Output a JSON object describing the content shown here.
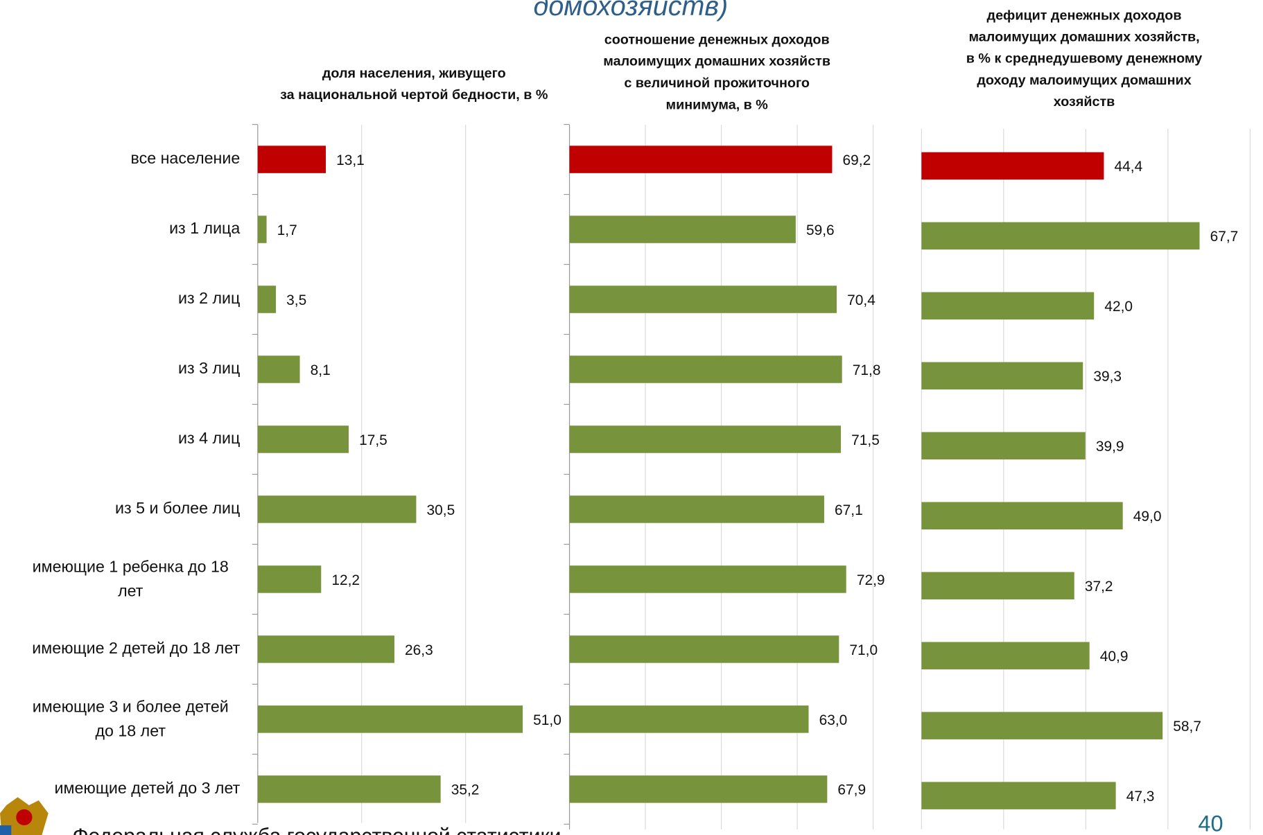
{
  "header_fragment": "домохозяйств)",
  "footer": "Федеральная служба государственной статистики",
  "page_number": "40",
  "chart_data": [
    {
      "type": "hbar",
      "title": [
        "доля населения, живущего",
        "за национальной чертой бедности, в %"
      ],
      "categories": [
        "все население",
        "из 1 лица",
        "из 2 лиц",
        "из 3 лиц",
        "из 4 лиц",
        "из 5 и более лиц",
        "имеющие 1 ребенка до 18\nлет",
        "имеющие 2 детей до 18 лет",
        "имеющие 3 и более детей\nдо 18 лет",
        "имеющие детей до 3 лет"
      ],
      "values": [
        13.1,
        1.7,
        3.5,
        8.1,
        17.5,
        30.5,
        12.2,
        26.3,
        51.0,
        35.2
      ],
      "value_labels": [
        "13,1",
        "1,7",
        "3,5",
        "8,1",
        "17,5",
        "30,5",
        "12,2",
        "26,3",
        "51,0",
        "35,2"
      ],
      "colors": [
        "#c00000",
        "#77933c",
        "#77933c",
        "#77933c",
        "#77933c",
        "#77933c",
        "#77933c",
        "#77933c",
        "#77933c",
        "#77933c"
      ],
      "xlim": [
        0,
        60
      ],
      "xticks": [
        0,
        20,
        40,
        60
      ],
      "grid": true
    },
    {
      "type": "hbar",
      "title": [
        "соотношение денежных доходов",
        "малоимущих домашних хозяйств",
        "с величиной прожиточного",
        "минимума, в %"
      ],
      "values": [
        69.2,
        59.6,
        70.4,
        71.8,
        71.5,
        67.1,
        72.9,
        71.0,
        63.0,
        67.9
      ],
      "value_labels": [
        "69,2",
        "59,6",
        "70,4",
        "71,8",
        "71,5",
        "67,1",
        "72,9",
        "71,0",
        "63,0",
        "67,9"
      ],
      "colors": [
        "#c00000",
        "#77933c",
        "#77933c",
        "#77933c",
        "#77933c",
        "#77933c",
        "#77933c",
        "#77933c",
        "#77933c",
        "#77933c"
      ],
      "xlim": [
        0,
        80
      ],
      "xticks": [
        0,
        20,
        40,
        60,
        80
      ],
      "grid": true
    },
    {
      "type": "hbar",
      "title": [
        "дефицит денежных доходов",
        "малоимущих домашних хозяйств,",
        "в % к среднедушевому денежному",
        "доходу малоимущих домашних",
        "хозяйств"
      ],
      "values": [
        44.4,
        67.7,
        42.0,
        39.3,
        39.9,
        49.0,
        37.2,
        40.9,
        58.7,
        47.3
      ],
      "value_labels": [
        "44,4",
        "67,7",
        "42,0",
        "39,3",
        "39,9",
        "49,0",
        "37,2",
        "40,9",
        "58,7",
        "47,3"
      ],
      "colors": [
        "#c00000",
        "#77933c",
        "#77933c",
        "#77933c",
        "#77933c",
        "#77933c",
        "#77933c",
        "#77933c",
        "#77933c",
        "#77933c"
      ],
      "xlim": [
        0,
        80
      ],
      "xticks": [
        0,
        20,
        40,
        60,
        80
      ],
      "grid": true
    }
  ]
}
